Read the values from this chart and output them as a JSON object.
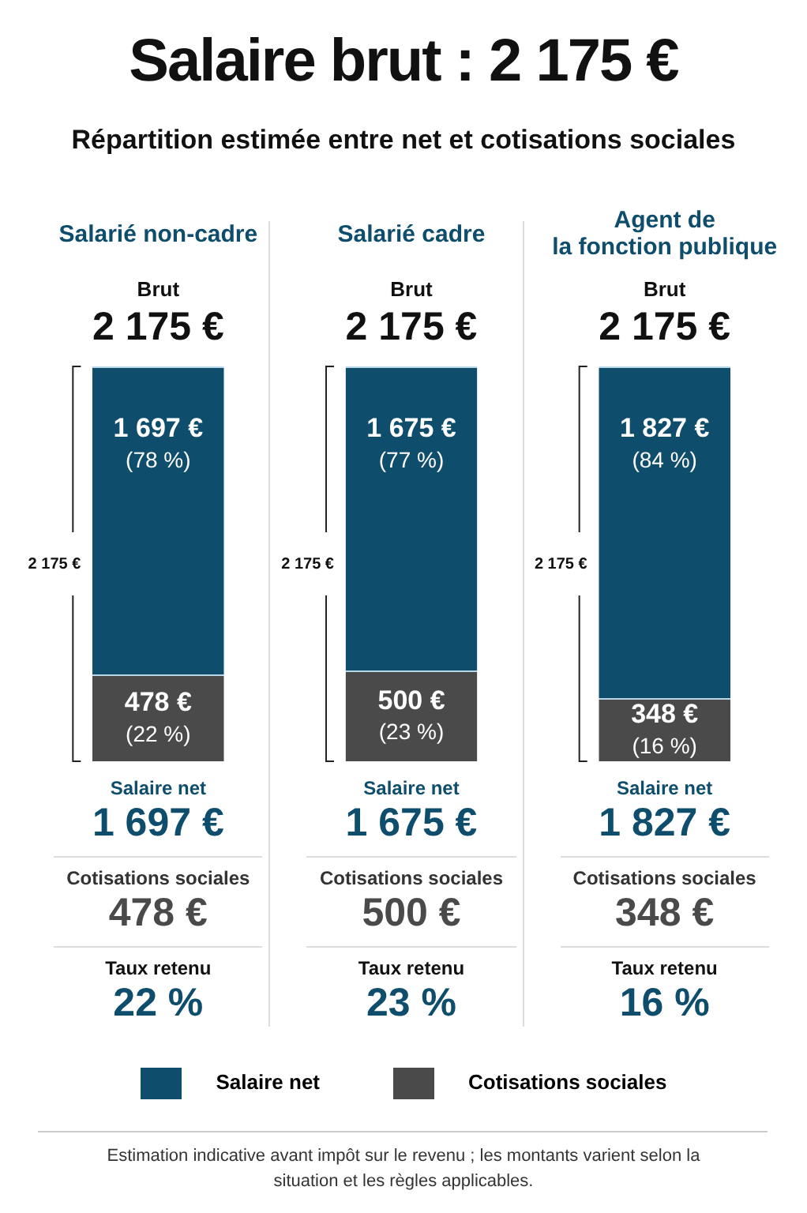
{
  "chart_data": {
    "type": "bar",
    "stacked": true,
    "title": "Salaire brut : 2 175 €",
    "subtitle": "Répartition estimée entre net et cotisations sociales",
    "categories": [
      "Salarié non-cadre",
      "Salarié cadre",
      "Agent de la fonction publique"
    ],
    "ylim": [
      0,
      2175
    ],
    "legend": "bottom",
    "series": [
      {
        "name": "Cotisations sociales",
        "color": "#4a4a4a",
        "values": [
          478,
          500,
          348
        ],
        "value_labels": [
          "478 €\n(22 %)",
          "500 €\n(23 %)",
          "348 €\n(16 %)"
        ]
      },
      {
        "name": "Salaire net",
        "color": "#0e4d6b",
        "values": [
          1697,
          1675,
          1827
        ],
        "value_labels": [
          "1 697 €\n(78 %)",
          "1 675 €\n(77 %)",
          "1 827 €\n(84 %)"
        ]
      }
    ],
    "totals": [
      "2 175 €",
      "2 175 €",
      "2 175 €"
    ],
    "annotations": [
      "Brut",
      "2 175 €",
      "Salaire net",
      "1 697 €",
      "Cotisations sociales",
      "478 €",
      "Taux retenu",
      "22 %",
      "Brut",
      "2 175 €",
      "Salaire net",
      "1 675 €",
      "Cotisations sociales",
      "500 €",
      "Taux retenu",
      "23 %",
      "Brut",
      "2 175 €",
      "Salaire net",
      "1 827 €",
      "Cotisations sociales",
      "348 €",
      "Taux retenu",
      "16 %",
      "Estimation indicative avant impôt sur le revenu ; les montants varient selon la situation et les règles applicables."
    ]
  }
}
